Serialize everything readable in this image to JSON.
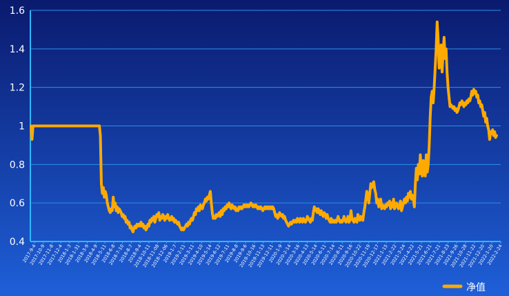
{
  "chart_data": {
    "type": "line",
    "colors": {
      "background_top": "#0a1a6e",
      "background_bottom": "#1e5fd8",
      "axis": "#2fb8ff",
      "grid": "#2f8fe6",
      "line": "#ffaa00"
    },
    "ylim": [
      0.4,
      1.6
    ],
    "yticks": [
      "0.4",
      "0.6",
      "0.8",
      "1",
      "1.2",
      "1.4",
      "1.6"
    ],
    "xtick_labels": [
      "2017-9-4",
      "2017-10-9",
      "2017-11-8",
      "2017-12-4",
      "2018-1-3",
      "2018-1-31",
      "2018-3-9",
      "2018-4-9",
      "2018-5-11",
      "2018-6-8",
      "2018-7-10",
      "2018-8-7",
      "2018-9-4",
      "2018-10-11",
      "2018-11-08",
      "2018-12-06",
      "2019-1-7",
      "2019-2-11",
      "2019-3-11",
      "2019-4-10",
      "2019-5-14",
      "2019-6-12",
      "2019-7-11",
      "2019-8-8",
      "2019-9-6",
      "2019-10-16",
      "2019-11-13",
      "2019-12-11",
      "2020-1-9",
      "2020-2-14",
      "2020-3-16",
      "2020-4-13",
      "2020-5-14",
      "2020-6-11",
      "2020-7-14",
      "2020-8-11",
      "2020-9-16",
      "2020-10-22",
      "2020-11-19",
      "2020-12-17",
      "2021-1-15",
      "2021-2-22",
      "2021-3-24",
      "2021-4-22",
      "2021-5-21",
      "2021-6-21",
      "2021-7-21",
      "2021-8-23",
      "2021-9-26",
      "2021-10-28",
      "2021-11-22",
      "2021-12-20",
      "2022-1-20",
      "2022-2-24"
    ],
    "series": [
      {
        "name": "净值",
        "values": [
          1.0,
          0.93,
          1.0,
          1.0,
          1.0,
          1.0,
          1.0,
          1.0,
          1.0,
          1.0,
          1.0,
          1.0,
          1.0,
          1.0,
          1.0,
          1.0,
          1.0,
          1.0,
          1.0,
          1.0,
          1.0,
          1.0,
          1.0,
          1.0,
          1.0,
          1.0,
          1.0,
          1.0,
          1.0,
          1.0,
          1.0,
          1.0,
          1.0,
          1.0,
          1.0,
          1.0,
          1.0,
          1.0,
          1.0,
          1.0,
          1.0,
          1.0,
          1.0,
          1.0,
          1.0,
          1.0,
          1.0,
          1.0,
          1.0,
          1.0,
          1.0,
          1.0,
          1.0,
          1.0,
          1.0,
          1.0,
          1.0,
          1.0,
          1.0,
          1.0,
          1.0,
          1.0,
          1.0,
          1.0,
          1.0,
          1.0,
          1.0,
          1.0,
          1.0,
          1.0,
          0.95,
          0.7,
          0.65,
          0.68,
          0.63,
          0.66,
          0.64,
          0.6,
          0.58,
          0.56,
          0.55,
          0.57,
          0.56,
          0.63,
          0.58,
          0.6,
          0.56,
          0.58,
          0.55,
          0.57,
          0.56,
          0.55,
          0.53,
          0.54,
          0.52,
          0.53,
          0.5,
          0.51,
          0.49,
          0.5,
          0.47,
          0.48,
          0.46,
          0.45,
          0.47,
          0.48,
          0.47,
          0.49,
          0.48,
          0.49,
          0.48,
          0.5,
          0.48,
          0.49,
          0.47,
          0.48,
          0.46,
          0.47,
          0.49,
          0.48,
          0.51,
          0.5,
          0.52,
          0.51,
          0.53,
          0.5,
          0.52,
          0.54,
          0.53,
          0.55,
          0.51,
          0.53,
          0.52,
          0.54,
          0.53,
          0.51,
          0.53,
          0.52,
          0.54,
          0.52,
          0.51,
          0.52,
          0.53,
          0.51,
          0.52,
          0.5,
          0.51,
          0.5,
          0.49,
          0.5,
          0.48,
          0.47,
          0.46,
          0.47,
          0.46,
          0.47,
          0.48,
          0.49,
          0.48,
          0.5,
          0.49,
          0.51,
          0.52,
          0.51,
          0.53,
          0.55,
          0.54,
          0.57,
          0.56,
          0.58,
          0.56,
          0.59,
          0.58,
          0.57,
          0.59,
          0.6,
          0.62,
          0.61,
          0.63,
          0.62,
          0.64,
          0.66,
          0.6,
          0.55,
          0.52,
          0.53,
          0.52,
          0.54,
          0.53,
          0.54,
          0.55,
          0.53,
          0.56,
          0.54,
          0.57,
          0.56,
          0.58,
          0.57,
          0.59,
          0.58,
          0.6,
          0.58,
          0.57,
          0.59,
          0.58,
          0.57,
          0.58,
          0.56,
          0.57,
          0.56,
          0.58,
          0.57,
          0.58,
          0.57,
          0.58,
          0.59,
          0.58,
          0.59,
          0.58,
          0.59,
          0.58,
          0.59,
          0.6,
          0.59,
          0.58,
          0.59,
          0.58,
          0.59,
          0.58,
          0.57,
          0.58,
          0.57,
          0.58,
          0.57,
          0.56,
          0.57,
          0.58,
          0.57,
          0.58,
          0.57,
          0.58,
          0.57,
          0.58,
          0.57,
          0.58,
          0.57,
          0.55,
          0.53,
          0.54,
          0.52,
          0.53,
          0.55,
          0.54,
          0.53,
          0.54,
          0.52,
          0.53,
          0.51,
          0.5,
          0.49,
          0.48,
          0.49,
          0.5,
          0.49,
          0.5,
          0.51,
          0.5,
          0.51,
          0.5,
          0.52,
          0.51,
          0.5,
          0.52,
          0.51,
          0.5,
          0.52,
          0.51,
          0.5,
          0.51,
          0.53,
          0.52,
          0.51,
          0.5,
          0.52,
          0.51,
          0.55,
          0.58,
          0.56,
          0.57,
          0.55,
          0.57,
          0.55,
          0.54,
          0.56,
          0.54,
          0.53,
          0.55,
          0.54,
          0.52,
          0.54,
          0.52,
          0.51,
          0.5,
          0.52,
          0.5,
          0.51,
          0.5,
          0.51,
          0.5,
          0.51,
          0.53,
          0.51,
          0.5,
          0.51,
          0.5,
          0.51,
          0.53,
          0.51,
          0.5,
          0.51,
          0.53,
          0.5,
          0.51,
          0.56,
          0.52,
          0.51,
          0.5,
          0.52,
          0.51,
          0.5,
          0.54,
          0.52,
          0.51,
          0.53,
          0.52,
          0.51,
          0.55,
          0.58,
          0.62,
          0.66,
          0.64,
          0.6,
          0.65,
          0.7,
          0.68,
          0.7,
          0.71,
          0.67,
          0.65,
          0.6,
          0.62,
          0.58,
          0.6,
          0.62,
          0.57,
          0.59,
          0.58,
          0.57,
          0.59,
          0.58,
          0.6,
          0.59,
          0.61,
          0.57,
          0.6,
          0.58,
          0.62,
          0.57,
          0.59,
          0.6,
          0.58,
          0.57,
          0.59,
          0.61,
          0.56,
          0.58,
          0.6,
          0.62,
          0.6,
          0.63,
          0.61,
          0.65,
          0.63,
          0.66,
          0.62,
          0.64,
          0.62,
          0.58,
          0.7,
          0.78,
          0.72,
          0.8,
          0.75,
          0.85,
          0.78,
          0.74,
          0.82,
          0.77,
          0.74,
          0.85,
          0.76,
          0.8,
          0.9,
          1.05,
          1.15,
          1.18,
          1.12,
          1.2,
          1.3,
          1.4,
          1.54,
          1.45,
          1.3,
          1.35,
          1.42,
          1.28,
          1.38,
          1.46,
          1.35,
          1.4,
          1.28,
          1.2,
          1.15,
          1.1,
          1.11,
          1.1,
          1.09,
          1.1,
          1.08,
          1.09,
          1.07,
          1.08,
          1.1,
          1.12,
          1.11,
          1.13,
          1.12,
          1.1,
          1.12,
          1.11,
          1.13,
          1.12,
          1.14,
          1.13,
          1.15,
          1.18,
          1.16,
          1.19,
          1.17,
          1.18,
          1.15,
          1.16,
          1.12,
          1.13,
          1.1,
          1.11,
          1.08,
          1.05,
          1.07,
          1.02,
          1.04,
          1.0,
          0.98,
          0.93,
          0.97,
          0.96,
          0.98,
          0.95,
          0.97,
          0.94,
          0.95
        ]
      }
    ],
    "legend_position": "bottom-right",
    "grid": true
  }
}
